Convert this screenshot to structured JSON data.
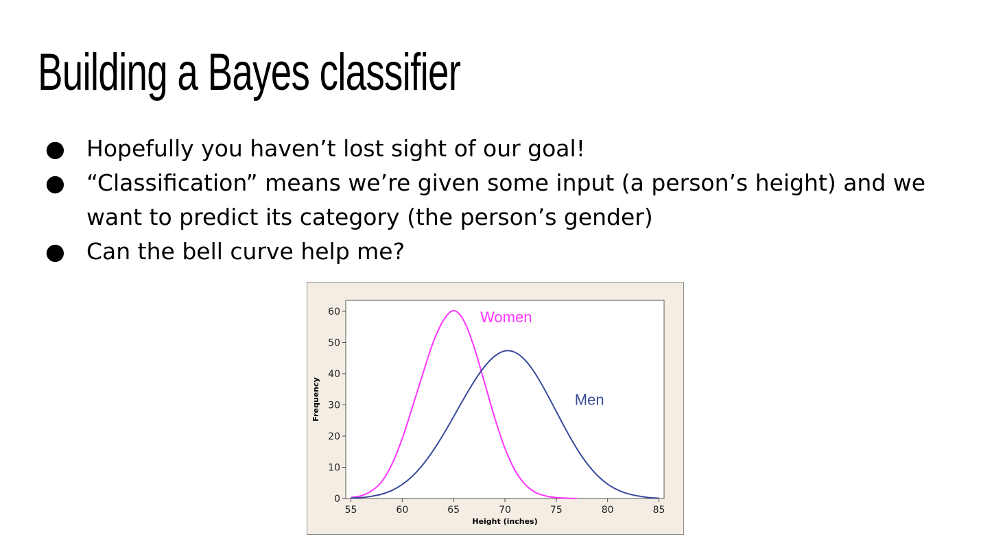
{
  "slide": {
    "title": "Building a Bayes classifier",
    "bullets": [
      "Hopefully you haven’t lost sight of our goal!",
      "“Classification” means we’re given some input (a person’s height) and we want to predict its category (the person’s gender)",
      "Can the bell curve help me?"
    ]
  },
  "chart_data": {
    "type": "line",
    "xlabel": "Height (inches)",
    "ylabel": "Frequency",
    "xlim": [
      54.5,
      85.5
    ],
    "ylim": [
      0,
      63.5
    ],
    "xticks": [
      55,
      60,
      65,
      70,
      75,
      80,
      85
    ],
    "yticks": [
      0,
      10,
      20,
      30,
      40,
      50,
      60
    ],
    "series": [
      {
        "name": "Women",
        "color": "#ff33ff",
        "x": [
          55,
          56,
          57,
          58,
          59,
          60,
          61,
          62,
          63,
          64,
          65,
          66,
          67,
          68,
          69,
          70,
          71,
          72,
          73,
          74,
          75,
          76,
          77
        ],
        "y": [
          0.3,
          0.9,
          2.4,
          5.4,
          11.0,
          19.2,
          29.4,
          39.9,
          49.9,
          57.0,
          60.2,
          57.0,
          48.5,
          37.3,
          25.9,
          16.1,
          8.9,
          4.4,
          1.9,
          0.8,
          0.3,
          0.1,
          0.0
        ]
      },
      {
        "name": "Men",
        "color": "#3a4a9a",
        "x": [
          55,
          56,
          57,
          58,
          59,
          60,
          61,
          62,
          63,
          64,
          65,
          66,
          67,
          68,
          69,
          70,
          71,
          72,
          73,
          74,
          75,
          76,
          77,
          78,
          79,
          80,
          81,
          82,
          83,
          84,
          85
        ],
        "y": [
          0.1,
          0.3,
          0.7,
          1.4,
          2.6,
          4.5,
          7.2,
          10.8,
          15.3,
          20.5,
          26.2,
          32.0,
          37.5,
          42.2,
          45.6,
          47.3,
          46.8,
          44.2,
          39.8,
          34.1,
          27.9,
          21.7,
          16.0,
          11.2,
          7.4,
          4.6,
          2.7,
          1.5,
          0.8,
          0.3,
          0.1
        ]
      }
    ],
    "annotations": [
      "Women",
      "Men"
    ],
    "grid": false
  }
}
